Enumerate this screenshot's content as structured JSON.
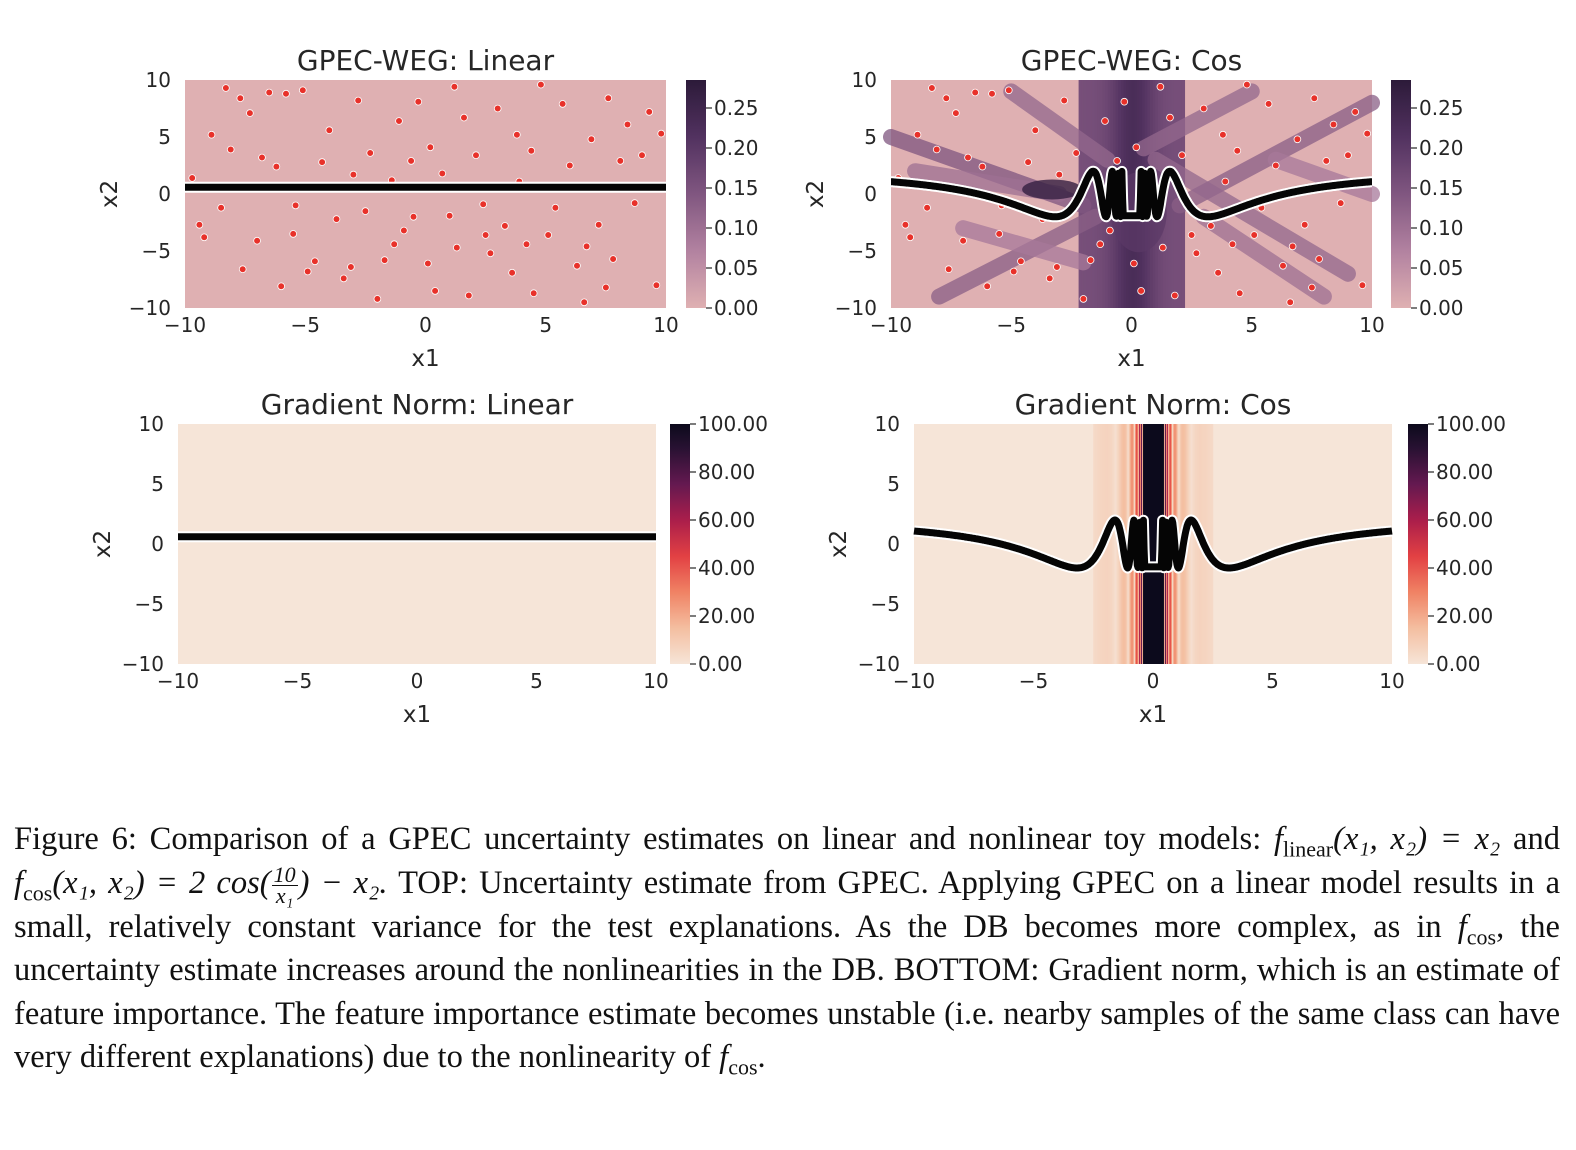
{
  "figure": {
    "colors": {
      "weg_low": "#dfb0b2",
      "weg_high": "#2c1a39",
      "grad_low": "#f6e5d8",
      "grad_high": "#0c0a1c",
      "points": "#e8312a",
      "boundary": "#050505"
    },
    "panels": [
      {
        "id": "weg_linear",
        "title": "GPEC-WEG: Linear",
        "kind": "weg",
        "model": "linear",
        "xlabel": "x1",
        "ylabel": "x2",
        "xticks": [
          "−10",
          "−5",
          "0",
          "5",
          "10"
        ],
        "yticks": [
          "10",
          "5",
          "0",
          "−5",
          "−10"
        ],
        "cbar_ticks": [
          "0.25",
          "0.20",
          "0.15",
          "0.10",
          "0.05",
          "0.00"
        ]
      },
      {
        "id": "weg_cos",
        "title": "GPEC-WEG: Cos",
        "kind": "weg",
        "model": "cos",
        "xlabel": "x1",
        "ylabel": "x2",
        "xticks": [
          "−10",
          "−5",
          "0",
          "5",
          "10"
        ],
        "yticks": [
          "10",
          "5",
          "0",
          "−5",
          "−10"
        ],
        "cbar_ticks": [
          "0.25",
          "0.20",
          "0.15",
          "0.10",
          "0.05",
          "0.00"
        ]
      },
      {
        "id": "grad_linear",
        "title": "Gradient Norm: Linear",
        "kind": "grad",
        "model": "linear",
        "xlabel": "x1",
        "ylabel": "x2",
        "xticks": [
          "−10",
          "−5",
          "0",
          "5",
          "10"
        ],
        "yticks": [
          "10",
          "5",
          "0",
          "−5",
          "−10"
        ],
        "cbar_ticks": [
          "100.00",
          "80.00",
          "60.00",
          "40.00",
          "20.00",
          "0.00"
        ]
      },
      {
        "id": "grad_cos",
        "title": "Gradient Norm: Cos",
        "kind": "grad",
        "model": "cos",
        "xlabel": "x1",
        "ylabel": "x2",
        "xticks": [
          "−10",
          "−5",
          "0",
          "5",
          "10"
        ],
        "yticks": [
          "10",
          "5",
          "0",
          "−5",
          "−10"
        ],
        "cbar_ticks": [
          "100.00",
          "80.00",
          "60.00",
          "40.00",
          "20.00",
          "0.00"
        ]
      }
    ],
    "sample_points": [
      [
        -9.4,
        -2.7
      ],
      [
        -9.2,
        -3.8
      ],
      [
        -8.9,
        5.2
      ],
      [
        -8.5,
        -1.2
      ],
      [
        -8.1,
        3.9
      ],
      [
        -7.7,
        8.4
      ],
      [
        -7.3,
        7.1
      ],
      [
        -7.0,
        -4.1
      ],
      [
        -6.8,
        3.2
      ],
      [
        -6.5,
        8.9
      ],
      [
        -6.2,
        2.4
      ],
      [
        -6.0,
        -8.1
      ],
      [
        -5.8,
        8.8
      ],
      [
        -5.5,
        -3.5
      ],
      [
        -5.1,
        9.1
      ],
      [
        -4.9,
        -6.8
      ],
      [
        -4.6,
        -5.9
      ],
      [
        -4.3,
        2.8
      ],
      [
        -4.0,
        5.6
      ],
      [
        -3.7,
        -2.2
      ],
      [
        -3.4,
        -7.4
      ],
      [
        -3.1,
        -6.4
      ],
      [
        -2.8,
        8.2
      ],
      [
        -2.5,
        -1.5
      ],
      [
        -2.3,
        3.6
      ],
      [
        -2.0,
        -9.2
      ],
      [
        -1.7,
        -5.8
      ],
      [
        -1.4,
        1.2
      ],
      [
        -1.1,
        6.4
      ],
      [
        -0.9,
        -3.2
      ],
      [
        -0.6,
        2.9
      ],
      [
        -0.3,
        8.1
      ],
      [
        0.1,
        -6.1
      ],
      [
        0.4,
        -8.5
      ],
      [
        0.7,
        1.8
      ],
      [
        1.0,
        -1.9
      ],
      [
        1.3,
        -4.7
      ],
      [
        1.6,
        6.7
      ],
      [
        1.8,
        -8.9
      ],
      [
        2.1,
        3.4
      ],
      [
        2.4,
        -0.9
      ],
      [
        2.7,
        -5.2
      ],
      [
        3.0,
        7.5
      ],
      [
        3.3,
        -2.8
      ],
      [
        3.6,
        -6.9
      ],
      [
        3.9,
        1.1
      ],
      [
        4.2,
        -4.4
      ],
      [
        4.5,
        -8.7
      ],
      [
        4.8,
        9.6
      ],
      [
        5.1,
        -3.6
      ],
      [
        5.4,
        -1.2
      ],
      [
        5.7,
        7.9
      ],
      [
        6.0,
        2.5
      ],
      [
        6.3,
        -6.3
      ],
      [
        6.6,
        -9.5
      ],
      [
        6.9,
        4.8
      ],
      [
        7.2,
        -2.7
      ],
      [
        7.5,
        -8.2
      ],
      [
        7.8,
        -5.7
      ],
      [
        8.1,
        2.9
      ],
      [
        8.4,
        6.1
      ],
      [
        8.7,
        -0.8
      ],
      [
        9.0,
        3.4
      ],
      [
        9.3,
        7.2
      ],
      [
        9.6,
        -8.0
      ],
      [
        -9.7,
        1.4
      ],
      [
        9.8,
        5.3
      ],
      [
        0.2,
        4.1
      ],
      [
        -1.3,
        -4.4
      ],
      [
        2.5,
        -3.6
      ],
      [
        -5.4,
        -1.0
      ],
      [
        3.8,
        5.2
      ],
      [
        -7.6,
        -6.6
      ],
      [
        6.7,
        -4.6
      ],
      [
        -3.0,
        1.7
      ],
      [
        1.2,
        9.4
      ],
      [
        -8.3,
        9.3
      ],
      [
        4.4,
        3.8
      ],
      [
        -0.5,
        -2.0
      ],
      [
        7.6,
        8.4
      ]
    ]
  },
  "caption": {
    "p1": "Figure 6:  Comparison of a GPEC uncertainty estimates on linear and nonlinear toy models: ",
    "f_linear_f": "f",
    "f_linear_sub": "linear",
    "f_linear_args": "(x₁, x₂) = x₂",
    "p2": " and ",
    "f_cos_f": "f",
    "f_cos_sub": "cos",
    "f_cos_args": "(x₁, x₂) = 2 cos(",
    "frac_num": "10",
    "frac_den": "x₁",
    "f_cos_tail": ") − x₂.",
    "p3": "  TOP: Uncertainty estimate from GPEC. Applying GPEC on a linear model results in a small, relatively constant variance for the test explanations.  As the DB becomes more complex, as in ",
    "f_cos2_f": "f",
    "f_cos2_sub": "cos",
    "p4": ", the uncertainty estimate increases around the nonlinearities in the DB. BOTTOM: Gradient norm, which is an estimate of feature importance. The feature importance estimate becomes unstable (i.e. nearby samples of the same class can have very different explanations) due to the nonlinearity of ",
    "f_cos3_f": "f",
    "f_cos3_sub": "cos",
    "p5": "."
  }
}
